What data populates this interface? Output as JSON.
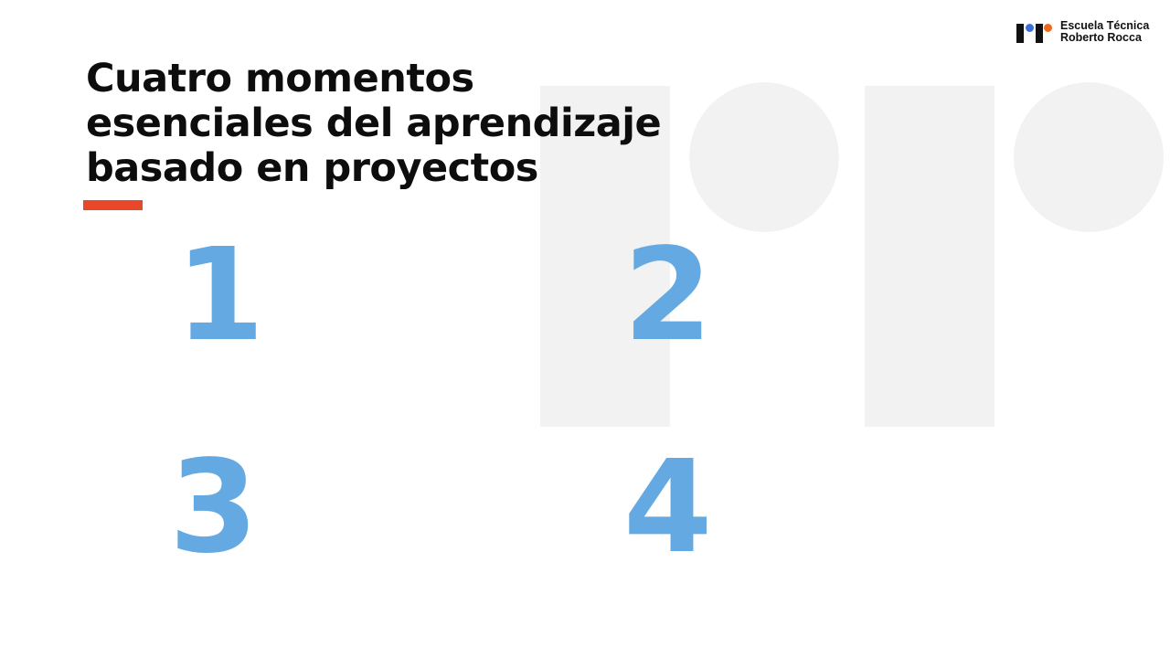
{
  "logo": {
    "line1": "Escuela Técnica",
    "line2": "Roberto Rocca"
  },
  "title": {
    "line1": "Cuatro momentos",
    "line2": "esenciales del aprendizaje",
    "line3": "basado en proyectos"
  },
  "numbers": [
    "1",
    "2",
    "3",
    "4"
  ],
  "colors": {
    "accent": "#e8472a",
    "number": "#64a9e1",
    "logo_dot_blue": "#3a6fd8",
    "logo_dot_orange": "#ee6a1a",
    "background_shapes": "#f2f2f2"
  }
}
